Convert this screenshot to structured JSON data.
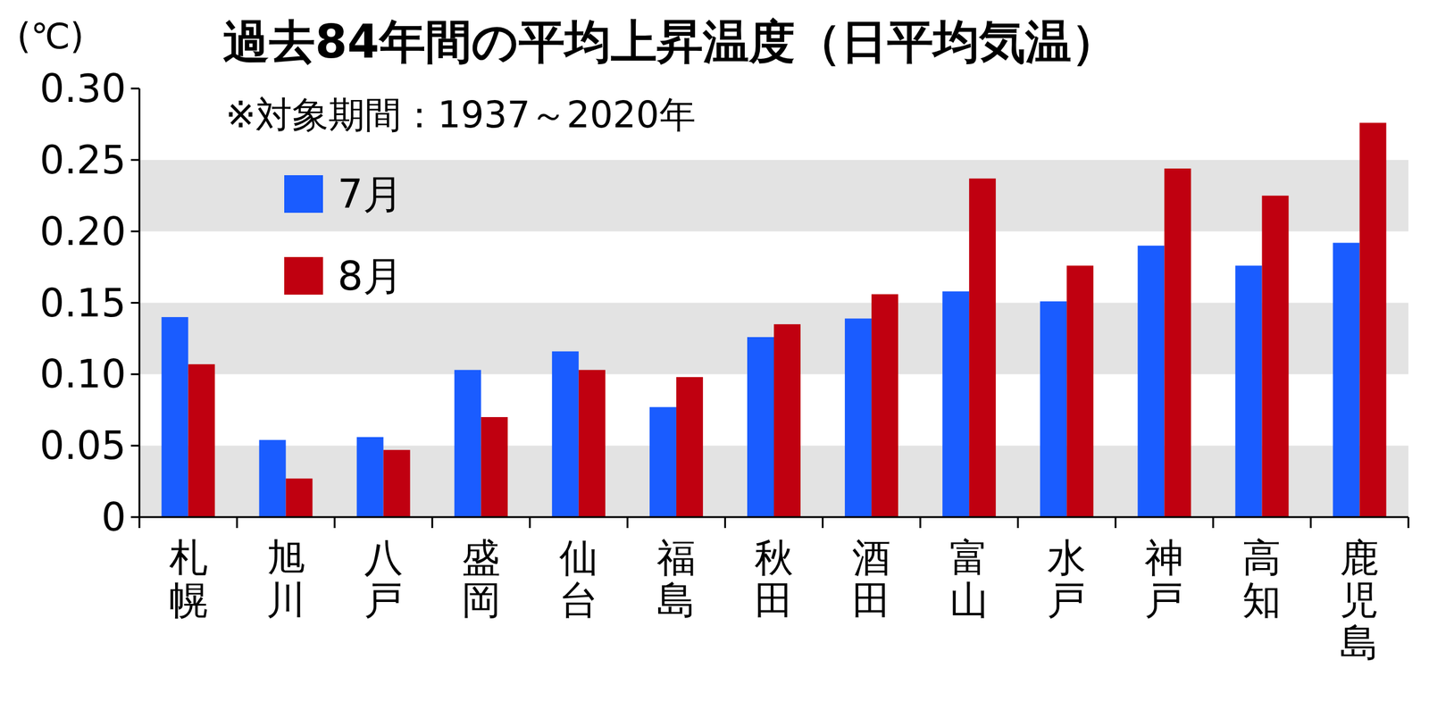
{
  "chart_data": {
    "type": "bar",
    "title": "過去84年間の平均上昇温度（日平均気温）",
    "subtitle": "※対象期間：1937～2020年",
    "y_label": "(℃)",
    "categories": [
      "札幌",
      "旭川",
      "八戸",
      "盛岡",
      "仙台",
      "福島",
      "秋田",
      "酒田",
      "富山",
      "水戸",
      "神戸",
      "高知",
      "鹿児島"
    ],
    "series": [
      {
        "name": "7月",
        "color": "#1a5cff",
        "values": [
          0.14,
          0.054,
          0.056,
          0.103,
          0.116,
          0.077,
          0.126,
          0.139,
          0.158,
          0.151,
          0.19,
          0.176,
          0.192
        ]
      },
      {
        "name": "8月",
        "color": "#c00010",
        "values": [
          0.107,
          0.027,
          0.047,
          0.07,
          0.103,
          0.098,
          0.135,
          0.156,
          0.237,
          0.176,
          0.244,
          0.225,
          0.276
        ]
      }
    ],
    "ylim": [
      0,
      0.3
    ],
    "yticks": [
      0,
      0.05,
      {
        "value": 0.1,
        "label": "0.10"
      },
      0.15,
      {
        "value": 0.2,
        "label": "0.20"
      },
      0.25,
      {
        "value": 0.3,
        "label": "0.30"
      }
    ],
    "grid": true,
    "legend": "upper-left"
  }
}
